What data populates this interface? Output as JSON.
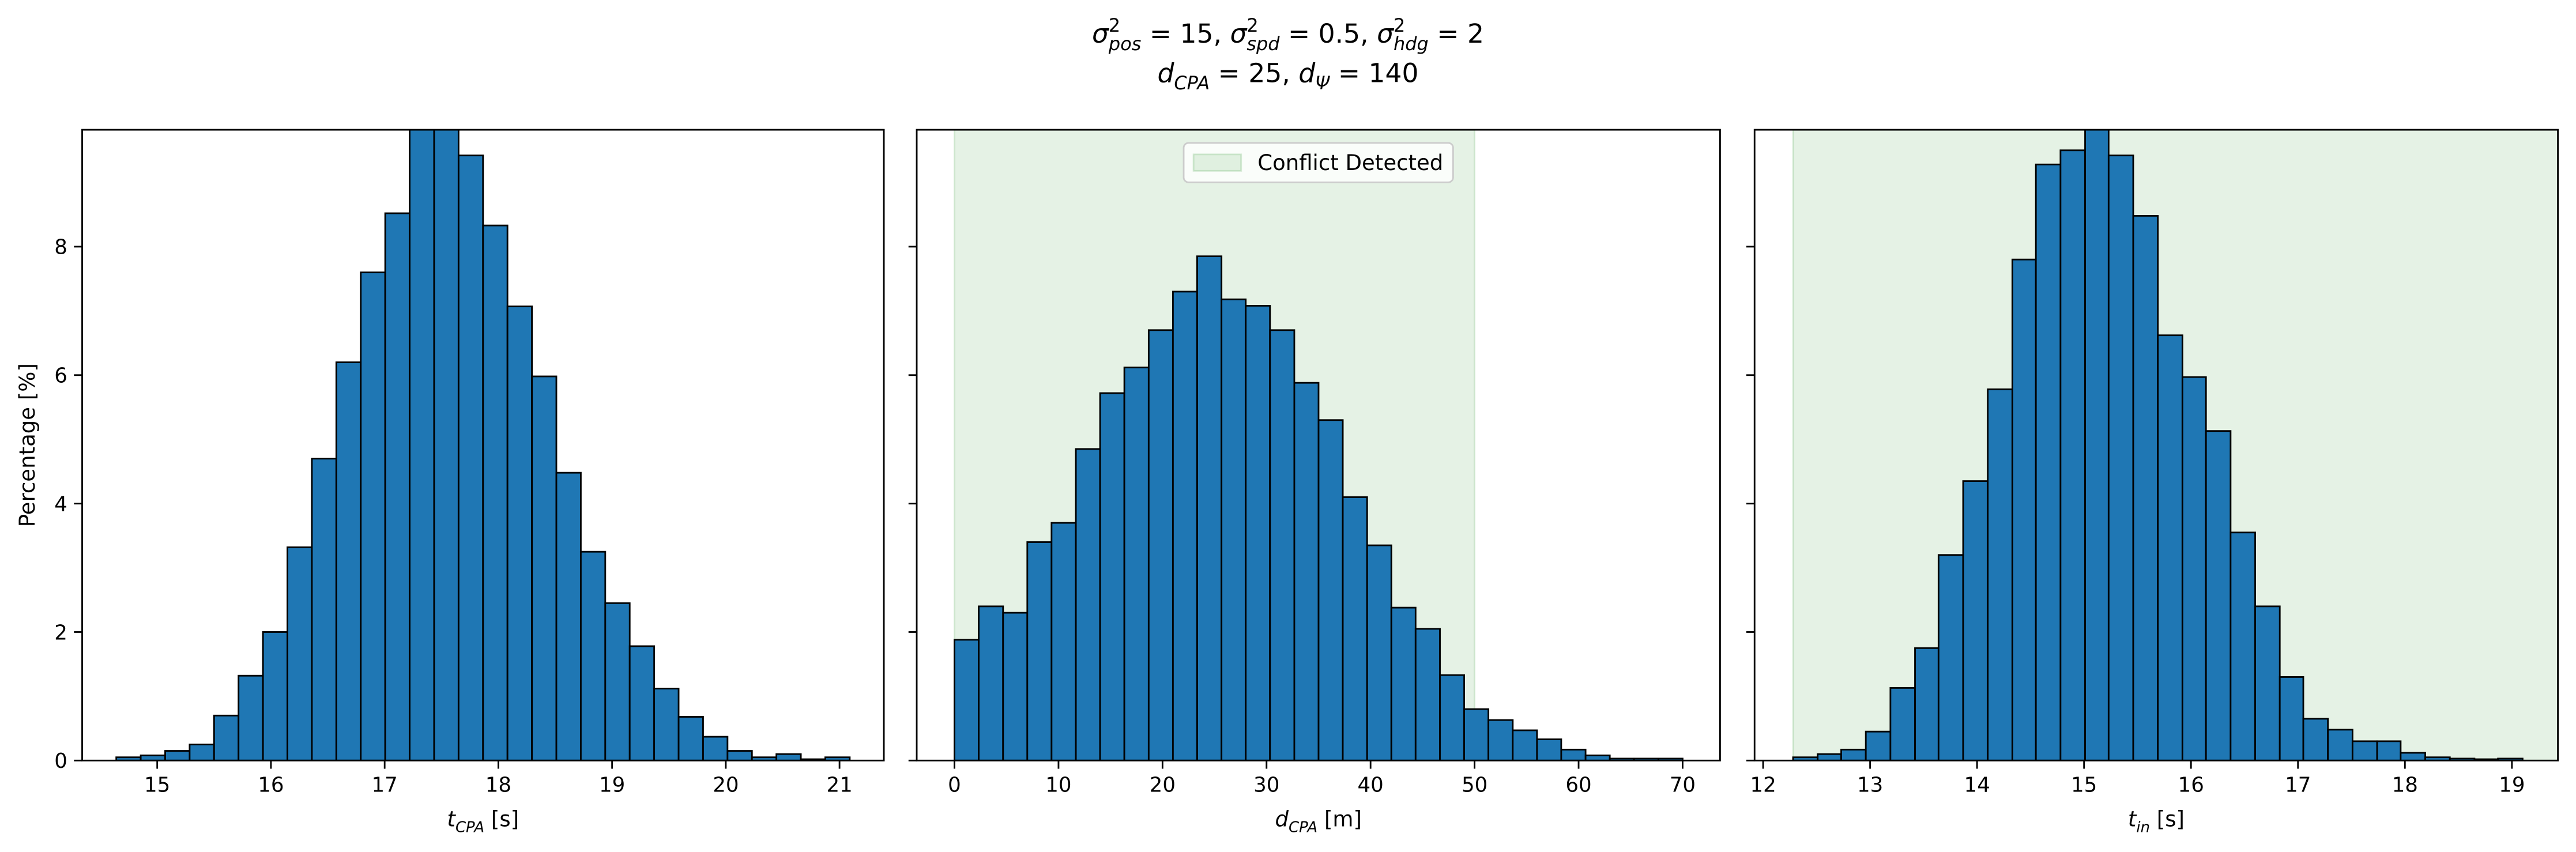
{
  "title": [
    [
      {
        "text": "σ",
        "style": "math"
      },
      {
        "text": "2",
        "style": "sup"
      },
      {
        "text": "pos",
        "style": "sub"
      },
      {
        "text": " = 15, ",
        "style": "plain"
      },
      {
        "text": "σ",
        "style": "math"
      },
      {
        "text": "2",
        "style": "sup"
      },
      {
        "text": "spd",
        "style": "sub"
      },
      {
        "text": " = 0.5, ",
        "style": "plain"
      },
      {
        "text": "σ",
        "style": "math"
      },
      {
        "text": "2",
        "style": "sup"
      },
      {
        "text": "hdg",
        "style": "sub"
      },
      {
        "text": " = 2",
        "style": "plain"
      }
    ],
    [
      {
        "text": "d",
        "style": "math"
      },
      {
        "text": "CPA",
        "style": "sub"
      },
      {
        "text": " = 25, ",
        "style": "plain"
      },
      {
        "text": "d",
        "style": "math"
      },
      {
        "text": "Ψ",
        "style": "sub"
      },
      {
        "text": " = 140",
        "style": "plain"
      }
    ]
  ],
  "chart_data": [
    {
      "type": "histogram",
      "color": "#1f77b4",
      "edgecolor": "#000000",
      "ylabel": "Percentage [%]",
      "xlabel": [
        {
          "text": "t",
          "style": "math"
        },
        {
          "text": "CPA",
          "style": "sub"
        },
        {
          "text": " [s]",
          "style": "plain"
        }
      ],
      "bins": [
        14.64,
        14.855,
        15.07,
        15.285,
        15.5,
        15.715,
        15.93,
        16.145,
        16.36,
        16.575,
        16.79,
        17.005,
        17.22,
        17.435,
        17.65,
        17.865,
        18.08,
        18.295,
        18.51,
        18.725,
        18.94,
        19.155,
        19.37,
        19.585,
        19.8,
        20.015,
        20.23,
        20.445,
        20.66,
        20.875,
        21.09
      ],
      "values": [
        0.05,
        0.08,
        0.15,
        0.25,
        0.7,
        1.32,
        2.0,
        3.32,
        4.7,
        6.2,
        7.6,
        8.52,
        10.2,
        10.0,
        9.42,
        8.33,
        7.07,
        5.98,
        4.48,
        3.25,
        2.45,
        1.78,
        1.12,
        0.68,
        0.37,
        0.15,
        0.05,
        0.1,
        0.02,
        0.05
      ],
      "xlim": [
        14.34,
        21.39
      ],
      "xticks": [
        15,
        16,
        17,
        18,
        19,
        20,
        21
      ],
      "ylim": [
        0,
        9.82
      ],
      "yticks": [
        0,
        2,
        4,
        6,
        8
      ]
    },
    {
      "type": "histogram",
      "color": "#1f77b4",
      "edgecolor": "#000000",
      "xlabel": [
        {
          "text": "d",
          "style": "math"
        },
        {
          "text": "CPA",
          "style": "sub"
        },
        {
          "text": " [m]",
          "style": "plain"
        }
      ],
      "bins": [
        0,
        2.33,
        4.67,
        7,
        9.33,
        11.67,
        14,
        16.33,
        18.67,
        21,
        23.33,
        25.67,
        28,
        30.33,
        32.67,
        35,
        37.33,
        39.67,
        42,
        44.33,
        46.67,
        49,
        51.33,
        53.67,
        56,
        58.33,
        60.67,
        63,
        65.33,
        67.67,
        70
      ],
      "values": [
        1.88,
        2.4,
        2.3,
        3.4,
        3.7,
        4.85,
        5.72,
        6.12,
        6.7,
        7.3,
        7.85,
        7.18,
        7.08,
        6.7,
        5.88,
        5.3,
        4.1,
        3.35,
        2.38,
        2.05,
        1.33,
        0.8,
        0.63,
        0.47,
        0.33,
        0.17,
        0.08,
        0.03,
        0.03,
        0.03
      ],
      "xlim": [
        -3.63,
        73.6
      ],
      "xticks": [
        0,
        10,
        20,
        30,
        40,
        50,
        60,
        70
      ],
      "ylim": [
        0,
        9.82
      ],
      "yticks": [
        0,
        2,
        4,
        6,
        8
      ],
      "span": {
        "range": [
          0,
          50
        ],
        "color": "#008000",
        "alpha": 0.1,
        "label": "Conflict Detected"
      },
      "legend": "upper center"
    },
    {
      "type": "histogram",
      "color": "#1f77b4",
      "edgecolor": "#000000",
      "xlabel": [
        {
          "text": "t",
          "style": "math"
        },
        {
          "text": "in",
          "style": "sub"
        },
        {
          "text": " [s]",
          "style": "plain"
        }
      ],
      "bins": [
        12.28,
        12.51,
        12.73,
        12.96,
        13.19,
        13.42,
        13.64,
        13.87,
        14.1,
        14.33,
        14.55,
        14.78,
        15.01,
        15.23,
        15.46,
        15.69,
        15.92,
        16.14,
        16.37,
        16.6,
        16.83,
        17.05,
        17.28,
        17.51,
        17.74,
        17.96,
        18.19,
        18.42,
        18.65,
        18.87,
        19.1
      ],
      "values": [
        0.05,
        0.1,
        0.17,
        0.45,
        1.13,
        1.75,
        3.2,
        4.35,
        5.78,
        7.8,
        9.28,
        9.5,
        10.1,
        9.42,
        8.48,
        6.62,
        5.97,
        5.13,
        3.55,
        2.4,
        1.3,
        0.65,
        0.48,
        0.3,
        0.3,
        0.12,
        0.05,
        0.03,
        0.02,
        0.03
      ],
      "xlim": [
        11.92,
        19.43
      ],
      "xticks": [
        12,
        13,
        14,
        15,
        16,
        17,
        18,
        19
      ],
      "ylim": [
        0,
        9.82
      ],
      "yticks": [
        0,
        2,
        4,
        6,
        8
      ],
      "span": {
        "range": [
          12.28,
          20
        ],
        "color": "#008000",
        "alpha": 0.1
      }
    }
  ]
}
